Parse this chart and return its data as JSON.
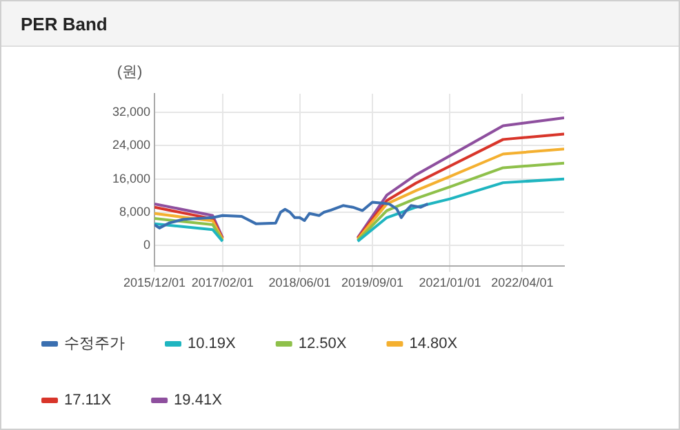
{
  "chart_data": {
    "type": "line",
    "title": "PER Band",
    "ylabel": "(원)",
    "xlim": [
      "2015-12-01",
      "2022-12-20"
    ],
    "xticks": [
      {
        "value": "2015-12-01",
        "label": "2015/12/01"
      },
      {
        "value": "2017-02-01",
        "label": "2017/02/01"
      },
      {
        "value": "2018-06-01",
        "label": "2018/06/01"
      },
      {
        "value": "2019-09-01",
        "label": "2019/09/01"
      },
      {
        "value": "2021-01-01",
        "label": "2021/01/01"
      },
      {
        "value": "2022-04-01",
        "label": "2022/04/01"
      }
    ],
    "ylim": [
      -5000,
      36500
    ],
    "yticks": [
      0,
      {
        "value": 8000,
        "label": "8,000"
      },
      {
        "value": 16000,
        "label": "16,000"
      },
      {
        "value": 24000,
        "label": "24,000"
      },
      {
        "value": 32000,
        "label": "32,000"
      }
    ],
    "grid": true,
    "legend": "bottom",
    "marker": "none",
    "series": [
      {
        "name": "수정주가",
        "color": "#3a6fb0",
        "x": [
          "2015-12-01",
          "2016-01-01",
          "2016-03-01",
          "2016-06-01",
          "2016-12-01",
          "2017-02-01",
          "2017-06-01",
          "2017-09-01",
          "2018-01-01",
          "2018-02-01",
          "2018-03-01",
          "2018-04-01",
          "2018-05-01",
          "2018-06-01",
          "2018-07-01",
          "2018-08-01",
          "2018-10-01",
          "2018-11-01",
          "2018-12-15",
          "2019-03-01",
          "2019-05-01",
          "2019-07-01",
          "2019-09-01",
          "2019-11-01",
          "2019-12-15",
          "2020-02-01",
          "2020-03-01",
          "2020-04-01",
          "2020-05-01",
          "2020-07-01",
          "2020-08-15"
        ],
        "values": [
          5000,
          4200,
          5400,
          6300,
          6700,
          7200,
          7000,
          5200,
          5400,
          8000,
          8700,
          8000,
          6700,
          6700,
          6000,
          7700,
          7200,
          8000,
          8500,
          9600,
          9200,
          8400,
          10400,
          10200,
          10000,
          8800,
          6700,
          8400,
          9600,
          9200,
          10000
        ]
      },
      {
        "name": "10.19X",
        "color": "#1fb5c0",
        "x": [
          "2015-12-01",
          "2016-12-01",
          "2017-02-01",
          "2018-01-01",
          "2019-06-01",
          "2019-12-01",
          "2020-06-01",
          "2021-01-01",
          "2021-12-01",
          "2022-12-20"
        ],
        "values": [
          5200,
          3800,
          1000,
          null,
          1000,
          6700,
          9200,
          11200,
          15100,
          16000
        ]
      },
      {
        "name": "12.50X",
        "color": "#8ec04a",
        "x": [
          "2015-12-01",
          "2016-12-01",
          "2017-02-01",
          "2018-01-01",
          "2019-06-01",
          "2019-12-01",
          "2020-06-01",
          "2021-01-01",
          "2021-12-01",
          "2022-12-20"
        ],
        "values": [
          6500,
          5000,
          1200,
          null,
          1200,
          8400,
          11300,
          14100,
          18700,
          19800
        ]
      },
      {
        "name": "14.80X",
        "color": "#f4b030",
        "x": [
          "2015-12-01",
          "2016-12-01",
          "2017-02-01",
          "2018-01-01",
          "2019-06-01",
          "2019-12-01",
          "2020-06-01",
          "2021-01-01",
          "2021-12-01",
          "2022-12-20"
        ],
        "values": [
          7700,
          5900,
          1500,
          null,
          1500,
          10000,
          13200,
          16600,
          22000,
          23200
        ]
      },
      {
        "name": "17.11X",
        "color": "#d8352a",
        "x": [
          "2015-12-01",
          "2016-12-01",
          "2017-02-01",
          "2018-01-01",
          "2019-06-01",
          "2019-12-01",
          "2020-06-01",
          "2021-01-01",
          "2021-12-01",
          "2022-12-20"
        ],
        "values": [
          9200,
          6400,
          1700,
          null,
          1700,
          10800,
          15000,
          19100,
          25500,
          26800
        ]
      },
      {
        "name": "19.41X",
        "color": "#8e4f9e",
        "x": [
          "2015-12-01",
          "2016-12-01",
          "2017-02-01",
          "2018-01-01",
          "2019-06-01",
          "2019-12-01",
          "2020-06-01",
          "2021-01-01",
          "2021-12-01",
          "2022-12-20"
        ],
        "values": [
          10000,
          7200,
          1900,
          null,
          1900,
          12100,
          17000,
          21600,
          28800,
          30700
        ]
      }
    ]
  }
}
